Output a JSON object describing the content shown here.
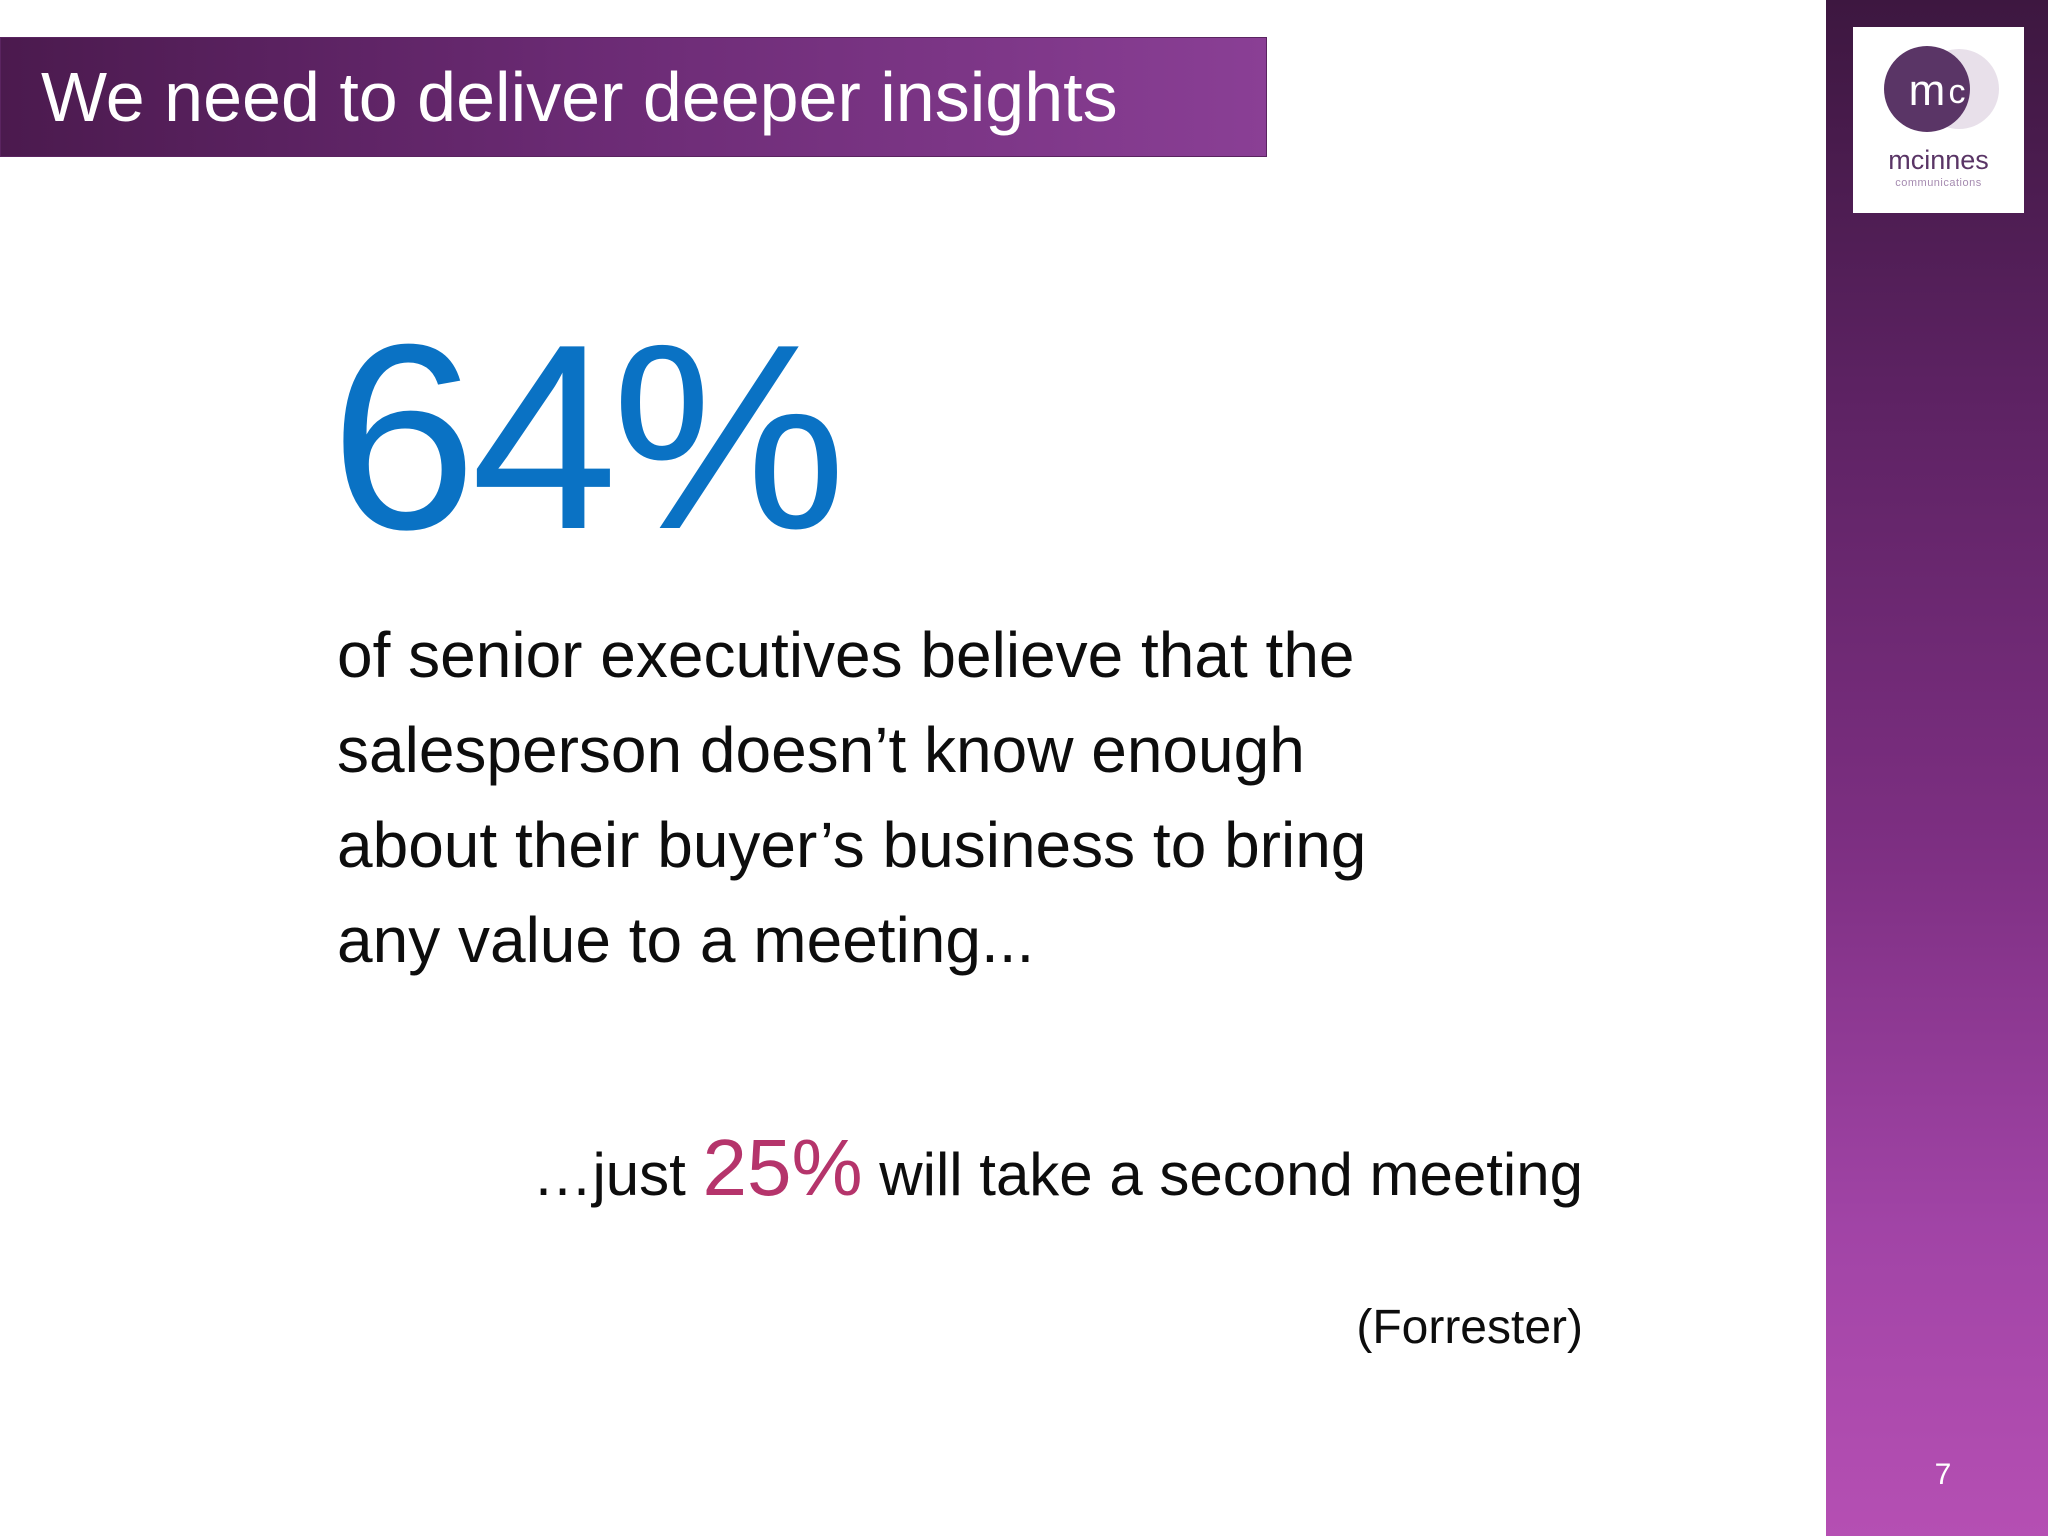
{
  "header": {
    "title": "We need to deliver deeper insights"
  },
  "brand": {
    "logo_monogram": "mc",
    "logo_name": "mcinnes",
    "logo_subtitle": "communications",
    "colors": {
      "purple_dark": "#4b1a4e",
      "purple_light": "#b54fb3",
      "blue": "#0a72c4",
      "pink": "#b5346b"
    }
  },
  "main": {
    "big_stat": "64%",
    "statement_lines": [
      "of senior executives believe that the",
      "salesperson doesn’t know enough",
      "about their buyer’s business to bring",
      "any value to a meeting..."
    ],
    "follow_up": {
      "prefix": "…just ",
      "stat": "25%",
      "suffix": " will take a second meeting"
    },
    "source": "(Forrester)"
  },
  "footer": {
    "page_number": "7"
  }
}
